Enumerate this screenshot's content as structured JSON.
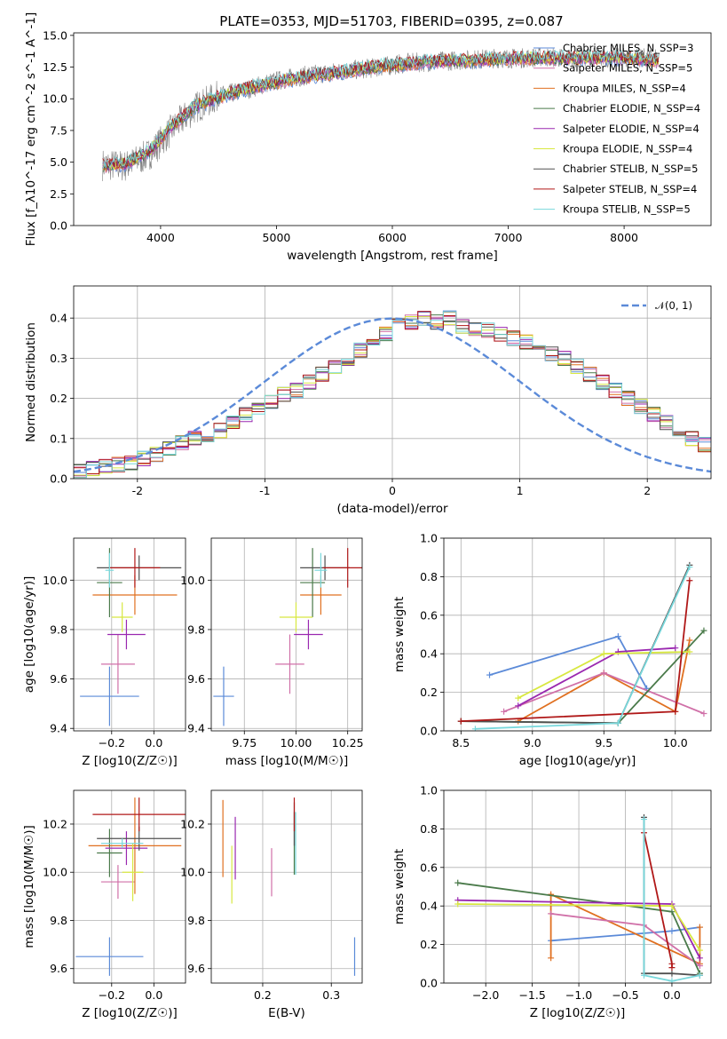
{
  "title": "PLATE=0353, MJD=51703, FIBERID=0395, z=0.087",
  "colors": [
    "#5b8ad8",
    "#e07020",
    "#d070a8",
    "#4a7a4a",
    "#9a28b0",
    "#d8e840",
    "#505050",
    "#b01818",
    "#78d8dc"
  ],
  "chart_data": [
    {
      "type": "line",
      "panel": "spectrum",
      "xlabel": "wavelength [Angstrom, rest frame]",
      "ylabel": "Flux [f_λ10^-17 erg cm^-2 s^-1 A^-1]",
      "xlim": [
        3250,
        8750
      ],
      "ylim": [
        0,
        15.2
      ],
      "xticks": [
        4000,
        5000,
        6000,
        7000,
        8000
      ],
      "yticks": [
        0.0,
        2.5,
        5.0,
        7.5,
        10.0,
        12.5,
        15.0
      ],
      "ytick_labels": [
        "0.0",
        "2.5",
        "5.0",
        "7.5",
        "10.0",
        "12.5",
        "15.0"
      ],
      "grid": false,
      "legend_position": "right",
      "data_color": "#808080",
      "data_x": [
        3500,
        3700,
        3900,
        4100,
        4300,
        4500,
        4700,
        4900,
        5100,
        5300,
        5500,
        5700,
        5900,
        6100,
        6300,
        6500,
        6700,
        6900,
        7100,
        7300,
        7500,
        7700,
        7900,
        8100,
        8300
      ],
      "data_y": [
        4.8,
        4.7,
        5.6,
        7.6,
        9.3,
        10.2,
        10.6,
        11.2,
        11.6,
        11.9,
        12.1,
        12.3,
        12.5,
        12.8,
        12.9,
        13.0,
        13.1,
        13.2,
        13.2,
        13.3,
        13.2,
        13.3,
        13.2,
        13.3,
        13.1
      ],
      "model_x": [
        3500,
        3700,
        3900,
        4100,
        4300,
        4500,
        4700,
        4900,
        5100,
        5300,
        5500,
        5700,
        5900,
        6100,
        6300,
        6500,
        6700,
        6900,
        7100,
        7300,
        7500,
        7700,
        7900,
        8100,
        8300
      ],
      "model_y": [
        4.7,
        4.9,
        5.8,
        7.9,
        9.4,
        10.1,
        10.7,
        11.1,
        11.5,
        11.8,
        12.0,
        12.3,
        12.6,
        12.7,
        12.9,
        13.0,
        13.0,
        13.1,
        13.2,
        13.2,
        13.2,
        13.2,
        13.2,
        13.2,
        13.0
      ],
      "series": [
        {
          "name": "Chabrier MILES, N_SSP=3",
          "color_index": 0
        },
        {
          "name": "Salpeter MILES, N_SSP=5",
          "color_index": 2
        },
        {
          "name": "Kroupa MILES, N_SSP=4",
          "color_index": 1
        },
        {
          "name": "Chabrier ELODIE, N_SSP=4",
          "color_index": 3
        },
        {
          "name": "Salpeter ELODIE, N_SSP=4",
          "color_index": 4
        },
        {
          "name": "Kroupa ELODIE, N_SSP=4",
          "color_index": 5
        },
        {
          "name": "Chabrier STELIB, N_SSP=5",
          "color_index": 6
        },
        {
          "name": "Salpeter STELIB, N_SSP=4",
          "color_index": 7
        },
        {
          "name": "Kroupa STELIB, N_SSP=5",
          "color_index": 8
        }
      ]
    },
    {
      "type": "line",
      "panel": "residual_histogram",
      "xlabel": "(data-model)/error",
      "ylabel": "Normed distribution",
      "xlim": [
        -2.5,
        2.5
      ],
      "ylim": [
        0,
        0.48
      ],
      "xticks": [
        -2,
        -1,
        0,
        1,
        2
      ],
      "yticks": [
        0.0,
        0.1,
        0.2,
        0.3,
        0.4
      ],
      "ytick_labels": [
        "0.0",
        "0.1",
        "0.2",
        "0.3",
        "0.4"
      ],
      "grid": true,
      "legend_position": "top-right",
      "legend": "𝒩(0, 1)",
      "bin_edges_start": -2.5,
      "bin_width": 0.1,
      "hist": [
        0.02,
        0.025,
        0.03,
        0.035,
        0.04,
        0.05,
        0.06,
        0.075,
        0.09,
        0.1,
        0.11,
        0.12,
        0.14,
        0.16,
        0.17,
        0.19,
        0.21,
        0.22,
        0.24,
        0.26,
        0.28,
        0.3,
        0.32,
        0.34,
        0.36,
        0.38,
        0.39,
        0.4,
        0.39,
        0.4,
        0.38,
        0.37,
        0.37,
        0.36,
        0.35,
        0.34,
        0.32,
        0.31,
        0.3,
        0.28,
        0.26,
        0.24,
        0.22,
        0.2,
        0.18,
        0.16,
        0.14,
        0.12,
        0.1,
        0.085
      ],
      "gaussian_color": "#5b8ad8"
    },
    {
      "type": "scatter",
      "panel": "age_vs_Z",
      "xlabel": "Z [log10(Z/Z☉)]",
      "ylabel": "age [log10(age/yr)]",
      "xlim": [
        -0.38,
        0.15
      ],
      "ylim": [
        9.39,
        10.17
      ],
      "xticks": [
        -0.2,
        0.0
      ],
      "xtick_labels": [
        "−0.2",
        "0.0"
      ],
      "yticks": [
        9.4,
        9.6,
        9.8,
        10.0
      ],
      "ytick_labels": [
        "9.4",
        "9.6",
        "9.8",
        "10.0"
      ],
      "grid": true,
      "points": [
        {
          "c": 0,
          "x": -0.21,
          "y": 9.53,
          "xe": 0.14,
          "ye": 0.12
        },
        {
          "c": 2,
          "x": -0.17,
          "y": 9.66,
          "xe": 0.08,
          "ye": 0.12
        },
        {
          "c": 1,
          "x": -0.09,
          "y": 9.94,
          "xe": 0.2,
          "ye": 0.08
        },
        {
          "c": 3,
          "x": -0.21,
          "y": 9.99,
          "xe": 0.06,
          "ye": 0.14
        },
        {
          "c": 4,
          "x": -0.13,
          "y": 9.78,
          "xe": 0.09,
          "ye": 0.06
        },
        {
          "c": 5,
          "x": -0.15,
          "y": 9.85,
          "xe": 0.05,
          "ye": 0.06
        },
        {
          "c": 6,
          "x": -0.07,
          "y": 10.05,
          "xe": 0.2,
          "ye": 0.05
        },
        {
          "c": 7,
          "x": -0.09,
          "y": 10.05,
          "xe": 0.12,
          "ye": 0.08
        },
        {
          "c": 8,
          "x": -0.21,
          "y": 10.04,
          "xe": 0.02,
          "ye": 0.07
        }
      ]
    },
    {
      "type": "scatter",
      "panel": "age_vs_mass",
      "xlabel": "mass [log10(M/M☉)]",
      "ylabel": "",
      "xlim": [
        9.59,
        10.32
      ],
      "ylim": [
        9.39,
        10.17
      ],
      "xticks": [
        9.75,
        10.0,
        10.25
      ],
      "xtick_labels": [
        "9.75",
        "10.00",
        "10.25"
      ],
      "yticks": [
        9.4,
        9.6,
        9.8,
        10.0
      ],
      "ytick_labels": [
        "9.4",
        "9.6",
        "9.8",
        "10.0"
      ],
      "grid": true,
      "points": [
        {
          "c": 0,
          "x": 9.65,
          "y": 9.53,
          "xe": 0.05,
          "ye": 0.12
        },
        {
          "c": 2,
          "x": 9.97,
          "y": 9.66,
          "xe": 0.07,
          "ye": 0.12
        },
        {
          "c": 1,
          "x": 10.12,
          "y": 9.94,
          "xe": 0.1,
          "ye": 0.08
        },
        {
          "c": 3,
          "x": 10.08,
          "y": 9.99,
          "xe": 0.06,
          "ye": 0.14
        },
        {
          "c": 4,
          "x": 10.06,
          "y": 9.78,
          "xe": 0.07,
          "ye": 0.06
        },
        {
          "c": 5,
          "x": 10.0,
          "y": 9.85,
          "xe": 0.08,
          "ye": 0.06
        },
        {
          "c": 6,
          "x": 10.14,
          "y": 10.05,
          "xe": 0.12,
          "ye": 0.05
        },
        {
          "c": 7,
          "x": 10.25,
          "y": 10.05,
          "xe": 0.12,
          "ye": 0.08
        },
        {
          "c": 8,
          "x": 10.12,
          "y": 10.04,
          "xe": 0.03,
          "ye": 0.07
        }
      ]
    },
    {
      "type": "line",
      "panel": "mass_weight_vs_age",
      "xlabel": "age  [log10(age/yr)]",
      "ylabel": "mass weight",
      "xlim": [
        8.38,
        10.25
      ],
      "ylim": [
        0,
        1.0
      ],
      "xticks": [
        8.5,
        9.0,
        9.5,
        10.0
      ],
      "xtick_labels": [
        "8.5",
        "9.0",
        "9.5",
        "10.0"
      ],
      "yticks": [
        0.0,
        0.2,
        0.4,
        0.6,
        0.8,
        1.0
      ],
      "ytick_labels": [
        "0.0",
        "0.2",
        "0.4",
        "0.6",
        "0.8",
        "1.0"
      ],
      "grid": true,
      "series": [
        {
          "c": 0,
          "x": [
            8.7,
            9.6,
            9.8
          ],
          "y": [
            0.29,
            0.49,
            0.22
          ]
        },
        {
          "c": 1,
          "x": [
            8.9,
            9.5,
            10.0,
            10.1
          ],
          "y": [
            0.05,
            0.3,
            0.1,
            0.47
          ]
        },
        {
          "c": 2,
          "x": [
            8.8,
            9.5,
            10.2
          ],
          "y": [
            0.1,
            0.3,
            0.09
          ]
        },
        {
          "c": 3,
          "x": [
            8.5,
            9.6,
            10.2
          ],
          "y": [
            0.05,
            0.04,
            0.52
          ]
        },
        {
          "c": 4,
          "x": [
            8.9,
            9.6,
            10.0
          ],
          "y": [
            0.13,
            0.41,
            0.43
          ]
        },
        {
          "c": 5,
          "x": [
            8.9,
            9.5,
            10.1
          ],
          "y": [
            0.17,
            0.4,
            0.41
          ]
        },
        {
          "c": 6,
          "x": [
            8.5,
            9.6,
            10.1
          ],
          "y": [
            0.05,
            0.04,
            0.86
          ]
        },
        {
          "c": 7,
          "x": [
            8.5,
            10.0,
            10.1
          ],
          "y": [
            0.05,
            0.1,
            0.78
          ]
        },
        {
          "c": 8,
          "x": [
            8.6,
            9.6,
            10.1
          ],
          "y": [
            0.01,
            0.04,
            0.85
          ]
        }
      ]
    },
    {
      "type": "scatter",
      "panel": "mass_vs_Z",
      "xlabel": "Z [log10(Z/Z☉)]",
      "ylabel": "mass [log10(M/M☉)]",
      "xlim": [
        -0.38,
        0.15
      ],
      "ylim": [
        9.54,
        10.34
      ],
      "xticks": [
        -0.2,
        0.0
      ],
      "xtick_labels": [
        "−0.2",
        "0.0"
      ],
      "yticks": [
        9.6,
        9.8,
        10.0,
        10.2
      ],
      "ytick_labels": [
        "9.6",
        "9.8",
        "10.0",
        "10.2"
      ],
      "grid": true,
      "points": [
        {
          "c": 0,
          "x": -0.21,
          "y": 9.65,
          "xe": 0.16,
          "ye": 0.08
        },
        {
          "c": 2,
          "x": -0.17,
          "y": 9.96,
          "xe": 0.08,
          "ye": 0.07
        },
        {
          "c": 1,
          "x": -0.09,
          "y": 10.11,
          "xe": 0.22,
          "ye": 0.2
        },
        {
          "c": 3,
          "x": -0.21,
          "y": 10.08,
          "xe": 0.06,
          "ye": 0.1
        },
        {
          "c": 4,
          "x": -0.13,
          "y": 10.1,
          "xe": 0.1,
          "ye": 0.07
        },
        {
          "c": 5,
          "x": -0.1,
          "y": 10.0,
          "xe": 0.05,
          "ye": 0.12
        },
        {
          "c": 6,
          "x": -0.07,
          "y": 10.14,
          "xe": 0.2,
          "ye": 0.05
        },
        {
          "c": 7,
          "x": -0.07,
          "y": 10.24,
          "xe": 0.22,
          "ye": 0.07
        },
        {
          "c": 8,
          "x": -0.15,
          "y": 10.12,
          "xe": 0.1,
          "ye": 0.02
        }
      ]
    },
    {
      "type": "scatter",
      "panel": "mass_vs_EBV",
      "xlabel": "E(B-V)",
      "ylabel": "",
      "xlim": [
        0.125,
        0.345
      ],
      "ylim": [
        9.54,
        10.34
      ],
      "xticks": [
        0.2,
        0.3
      ],
      "xtick_labels": [
        "0.2",
        "0.3"
      ],
      "yticks": [
        9.6,
        9.8,
        10.0,
        10.2
      ],
      "ytick_labels": [
        "9.6",
        "9.8",
        "10.0",
        "10.2"
      ],
      "grid": true,
      "points": [
        {
          "c": 0,
          "x": 0.334,
          "y": 9.65,
          "xe": 0,
          "ye": 0.08
        },
        {
          "c": 1,
          "x": 0.142,
          "y": 10.14,
          "xe": 0,
          "ye": 0.16
        },
        {
          "c": 2,
          "x": 0.213,
          "y": 10.0,
          "xe": 0,
          "ye": 0.1
        },
        {
          "c": 3,
          "x": 0.246,
          "y": 10.12,
          "xe": 0,
          "ye": 0.13
        },
        {
          "c": 4,
          "x": 0.16,
          "y": 10.1,
          "xe": 0,
          "ye": 0.13
        },
        {
          "c": 5,
          "x": 0.155,
          "y": 9.99,
          "xe": 0,
          "ye": 0.12
        },
        {
          "c": 6,
          "x": 0.246,
          "y": 10.2,
          "xe": 0,
          "ye": 0.09
        },
        {
          "c": 7,
          "x": 0.246,
          "y": 10.24,
          "xe": 0,
          "ye": 0.07
        },
        {
          "c": 8,
          "x": 0.248,
          "y": 10.12,
          "xe": 0,
          "ye": 0.13
        }
      ]
    },
    {
      "type": "line",
      "panel": "mass_weight_vs_Z",
      "xlabel": "Z [log10(Z/Z☉)]",
      "ylabel": "mass weight",
      "xlim": [
        -2.45,
        0.42
      ],
      "ylim": [
        0,
        1.0
      ],
      "xticks": [
        -2.0,
        -1.5,
        -1.0,
        -0.5,
        0.0
      ],
      "xtick_labels": [
        "−2.0",
        "−1.5",
        "−1.0",
        "−0.5",
        "0.0"
      ],
      "yticks": [
        0.0,
        0.2,
        0.4,
        0.6,
        0.8,
        1.0
      ],
      "ytick_labels": [
        "0.0",
        "0.2",
        "0.4",
        "0.6",
        "0.8",
        "1.0"
      ],
      "grid": true,
      "series": [
        {
          "c": 0,
          "x": [
            -1.3,
            0.0,
            0.3
          ],
          "y": [
            0.22,
            0.27,
            0.29
          ]
        },
        {
          "c": 1,
          "x": [
            -1.3,
            -1.3,
            0.3,
            0.3
          ],
          "y": [
            0.13,
            0.46,
            0.1,
            0.29
          ]
        },
        {
          "c": 2,
          "x": [
            -1.3,
            -0.3,
            0.3
          ],
          "y": [
            0.36,
            0.3,
            0.09
          ]
        },
        {
          "c": 3,
          "x": [
            -2.3,
            0.0,
            0.3
          ],
          "y": [
            0.52,
            0.37,
            0.05
          ]
        },
        {
          "c": 4,
          "x": [
            -2.3,
            0.0,
            0.3
          ],
          "y": [
            0.43,
            0.41,
            0.13
          ]
        },
        {
          "c": 5,
          "x": [
            -2.3,
            0.0,
            0.3
          ],
          "y": [
            0.41,
            0.4,
            0.17
          ]
        },
        {
          "c": 6,
          "x": [
            -0.3,
            -0.3,
            0.0,
            0.3
          ],
          "y": [
            0.86,
            0.05,
            0.05,
            0.04
          ]
        },
        {
          "c": 7,
          "x": [
            -0.3,
            0.0,
            0.0
          ],
          "y": [
            0.78,
            0.1,
            0.08
          ]
        },
        {
          "c": 8,
          "x": [
            -0.3,
            -0.3,
            0.0,
            0.3
          ],
          "y": [
            0.85,
            0.04,
            0.01,
            0.04
          ]
        }
      ]
    }
  ]
}
